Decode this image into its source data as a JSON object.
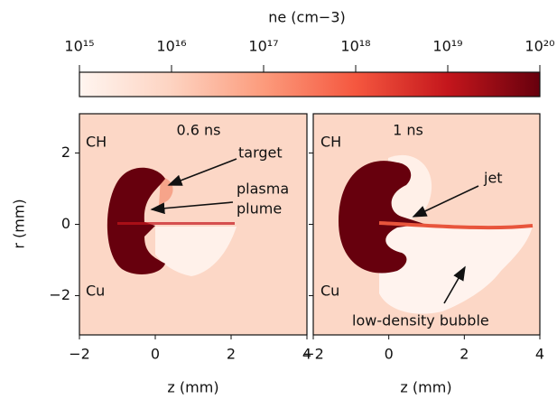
{
  "chart_data": [
    {
      "type": "heatmap",
      "title": "0.6 ns",
      "xlabel": "z (mm)",
      "ylabel": "r (mm)",
      "xlim": [
        -2,
        4
      ],
      "ylim": [
        -3.1,
        3.1
      ],
      "xticks": [
        {
          "value": -2,
          "label": "−2"
        },
        0,
        2,
        4
      ],
      "yticks": [
        {
          "value": -2,
          "label": "−2"
        },
        0,
        2
      ],
      "ytick_labels": true,
      "annotations": [
        "CH",
        "Cu",
        "target",
        "plasma",
        "plume"
      ],
      "colorbar": {
        "label": "ne (cm−3)",
        "log": true,
        "lim": [
          1000000000000000.0,
          1e+20
        ],
        "ticks": [
          {
            "value": 1000000000000000.0,
            "label": "10¹⁵"
          },
          {
            "value": 1e+16,
            "label": "10¹⁶"
          },
          {
            "value": 1e+17,
            "label": "10¹⁷"
          },
          {
            "value": 1e+18,
            "label": "10¹⁸"
          },
          {
            "value": 1e+19,
            "label": "10¹⁹"
          },
          {
            "value": 1e+20,
            "label": "10²⁰"
          }
        ]
      }
    },
    {
      "type": "heatmap",
      "title": "1 ns",
      "xlabel": "z (mm)",
      "xlim": [
        -2,
        4
      ],
      "ylim": [
        -3.1,
        3.1
      ],
      "xticks": [
        {
          "value": -2,
          "label": "−2"
        },
        0,
        2,
        4
      ],
      "yticks": [
        -2,
        0,
        2
      ],
      "ytick_labels": false,
      "annotations": [
        "CH",
        "Cu",
        "jet",
        "low-density bubble"
      ]
    }
  ]
}
